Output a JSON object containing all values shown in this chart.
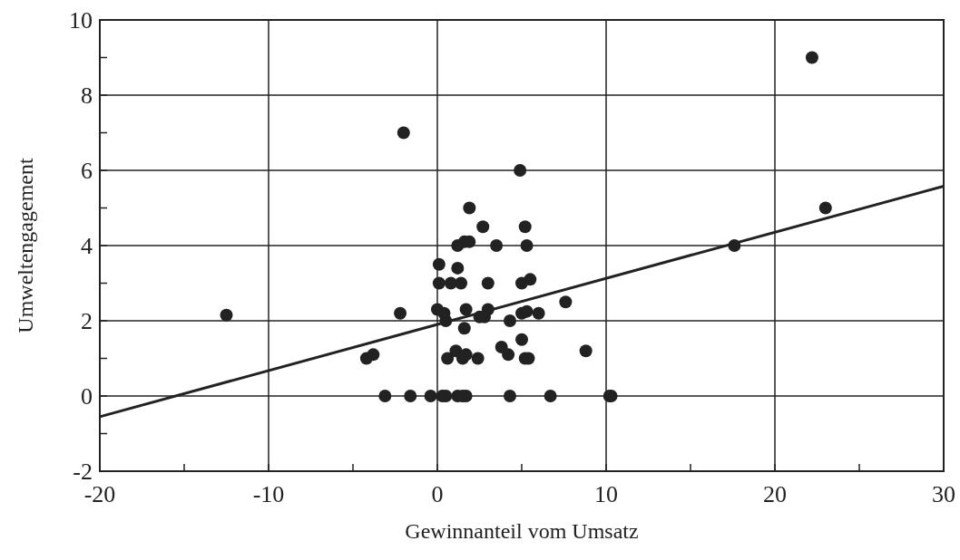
{
  "chart_data": {
    "type": "scatter",
    "xlabel": "Gewinnanteil vom Umsatz",
    "ylabel": "Umweltengagement",
    "xlim": [
      -20,
      30
    ],
    "ylim": [
      -2,
      10
    ],
    "xticks": [
      -20,
      {
        "value": -15,
        "label": null
      },
      -10,
      {
        "value": -5,
        "label": null
      },
      0,
      {
        "value": 5,
        "label": null
      },
      10,
      {
        "value": 15,
        "label": null
      },
      20,
      {
        "value": 25,
        "label": null
      },
      30
    ],
    "yticks": [
      -2,
      {
        "value": -1,
        "label": null
      },
      0,
      {
        "value": 1,
        "label": null
      },
      2,
      {
        "value": 3,
        "label": null
      },
      4,
      {
        "value": 5,
        "label": null
      },
      6,
      {
        "value": 7,
        "label": null
      },
      8,
      {
        "value": 9,
        "label": null
      },
      10
    ],
    "grid": true,
    "marker": "circle",
    "series": [
      {
        "color": "#222222",
        "x": [
          -12.5,
          -2,
          4.9,
          22.2,
          23,
          17.6,
          1.9,
          2.7,
          5.2,
          1.2,
          1.6,
          1.9,
          3.5,
          5.3,
          0.1,
          1.2,
          0.1,
          0.8,
          1.4,
          3,
          5,
          5.5,
          -2.2,
          0,
          0.4,
          0.5,
          1.7,
          2.5,
          3,
          2.8,
          4.3,
          5,
          5.3,
          6,
          7.6,
          1.6,
          -4.2,
          -3.8,
          0.6,
          1.1,
          1.5,
          1.7,
          2.4,
          3.8,
          4.2,
          5,
          5.2,
          5.4,
          8.8,
          -3.1,
          -1.6,
          -0.4,
          0.3,
          0.5,
          1.2,
          1.5,
          1.7,
          4.3,
          6.7,
          10.2,
          10.3
        ],
        "values": [
          2.15,
          7,
          6,
          9,
          5,
          4,
          5,
          4.5,
          4.5,
          4,
          4.1,
          4.1,
          4,
          4,
          3.5,
          3.4,
          3,
          3,
          3,
          3,
          3,
          3.1,
          2.2,
          2.3,
          2.2,
          2,
          2.3,
          2.1,
          2.3,
          2.1,
          2,
          2.2,
          2.25,
          2.2,
          2.5,
          1.8,
          1,
          1.1,
          1,
          1.2,
          1,
          1.1,
          1,
          1.3,
          1.1,
          1.5,
          1,
          1,
          1.2,
          0,
          0,
          0,
          0,
          0,
          0,
          0,
          0,
          0,
          0,
          0,
          0
        ]
      },
      {
        "type": "line",
        "color": "#222222",
        "x": [
          -20,
          30
        ],
        "values": [
          -0.55,
          5.58
        ],
        "marker": "none"
      }
    ]
  }
}
